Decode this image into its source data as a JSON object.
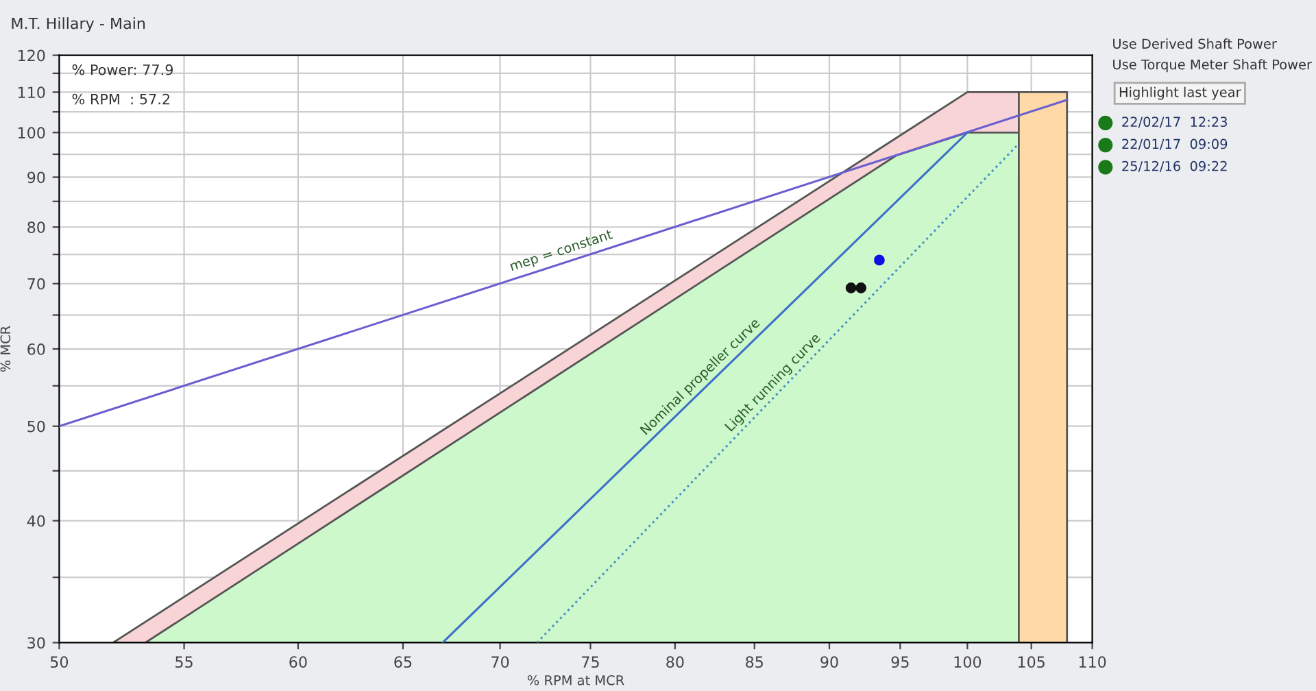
{
  "chart_data": {
    "type": "line",
    "title": "M.T. Hillary - Main",
    "xlabel": "% RPM at MCR",
    "ylabel": "% MCR",
    "log": "xy",
    "grid": true,
    "legend": false,
    "xlim": [
      50,
      110
    ],
    "ylim": [
      30,
      120
    ],
    "xticks": [
      50,
      55,
      60,
      65,
      70,
      75,
      80,
      85,
      90,
      95,
      100,
      105,
      110
    ],
    "yticks": [
      30,
      {
        "value": 35,
        "label": null
      },
      40,
      {
        "value": 45,
        "label": null
      },
      50,
      {
        "value": 55,
        "label": null
      },
      60,
      {
        "value": 65,
        "label": null
      },
      70,
      {
        "value": 75,
        "label": null
      },
      80,
      {
        "value": 85,
        "label": null
      },
      90,
      {
        "value": 95,
        "label": null
      },
      100,
      {
        "value": 105,
        "label": null
      },
      110,
      {
        "value": 115,
        "label": null
      },
      120
    ],
    "series": [
      {
        "type": "area",
        "color": "#f8d4d6",
        "x": [
          52.1,
          100,
          104
        ],
        "values": [
          30,
          110,
          110
        ]
      },
      {
        "type": "area",
        "color": "#ccf8cc",
        "x": [
          53.4,
          94.7,
          100,
          104
        ],
        "values": [
          30,
          94.7,
          100,
          100
        ]
      },
      {
        "type": "area",
        "color": "#ffd9a6",
        "x": [
          104,
          107.9
        ],
        "values": [
          110,
          110
        ]
      },
      {
        "name": "mep = constant",
        "color": "#6a5fd0",
        "line_style": "solid",
        "x": [
          50,
          107.9
        ],
        "values": [
          50,
          108
        ]
      },
      {
        "name": "Nominal propeller curve",
        "color": "#3c6fc8",
        "line_style": "solid",
        "x": [
          67,
          100
        ],
        "values": [
          30,
          100
        ]
      },
      {
        "name": "Light running curve",
        "color": "#4a8fc0",
        "line_style": "dotted",
        "x": [
          72,
          104
        ],
        "values": [
          30,
          97.4
        ]
      },
      {
        "type": "scatter",
        "color": "#1010e0",
        "marker": "circle",
        "x": [
          93.5
        ],
        "values": [
          74
        ]
      },
      {
        "type": "scatter",
        "color": "#111111",
        "marker": "circle",
        "x": [
          91.5,
          92.2
        ],
        "values": [
          69.3,
          69.3
        ]
      }
    ],
    "annotations": [
      "% Power: 77.9",
      "% RPM  : 57.2",
      "Use Derived Shaft Power",
      "Use Torque Meter Shaft Power",
      "Highlight last year",
      "22/02/17  12:23",
      "22/01/17  09:09",
      "25/12/16  09:22"
    ]
  }
}
